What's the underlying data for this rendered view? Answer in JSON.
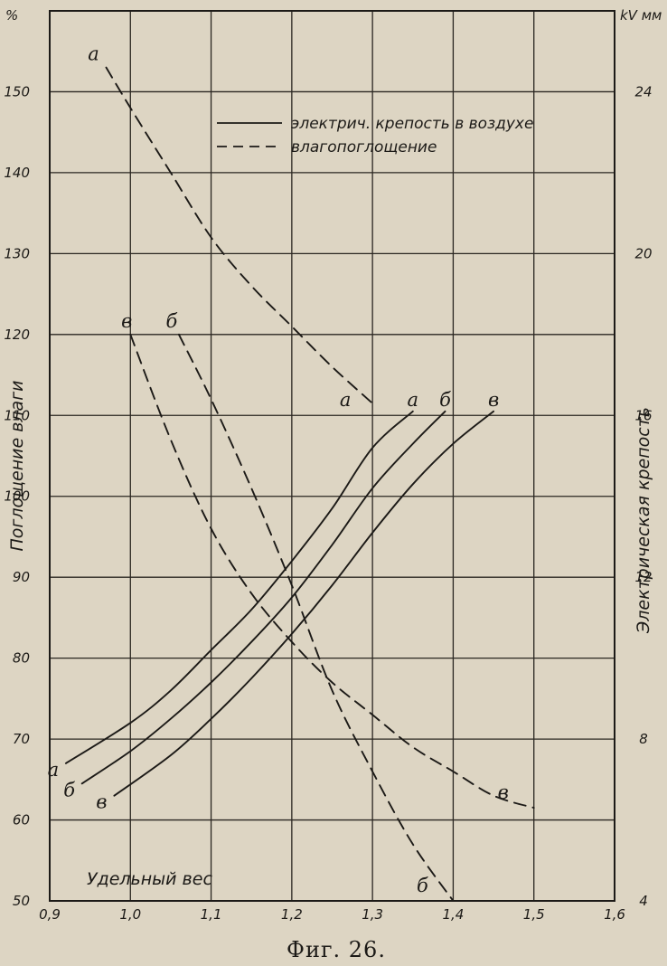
{
  "caption": "Фиг. 26.",
  "chart_data": {
    "type": "line",
    "xlabel": "Удельный вес",
    "ylabel_left": "Поглощение влаги",
    "ylabel_right": "Электрическая крепость",
    "left_unit": "%",
    "right_unit": "kV мм",
    "xlim": [
      0.9,
      1.6
    ],
    "ylim_left": [
      50,
      160
    ],
    "ylim_right": [
      4,
      26
    ],
    "x_ticks": [
      "0,9",
      "1,0",
      "1,1",
      "1,2",
      "1,3",
      "1,4",
      "1,5",
      "1,6"
    ],
    "x_tick_values": [
      0.9,
      1.0,
      1.1,
      1.2,
      1.3,
      1.4,
      1.5,
      1.6
    ],
    "y_left_ticks": [
      "50",
      "60",
      "70",
      "80",
      "90",
      "100",
      "110",
      "120",
      "130",
      "140",
      "150"
    ],
    "y_left_tick_values": [
      50,
      60,
      70,
      80,
      90,
      100,
      110,
      120,
      130,
      140,
      150
    ],
    "y_right_ticks": [
      "4",
      "8",
      "12",
      "16",
      "20",
      "24"
    ],
    "y_right_tick_values": [
      4,
      8,
      12,
      16,
      20,
      24
    ],
    "grid": true,
    "legend": {
      "placement": "top-center",
      "entries": [
        {
          "style": "solid",
          "label": "электрич. крепость в воздухе"
        },
        {
          "style": "dashed",
          "label": "влагопоглощение"
        }
      ]
    },
    "series": [
      {
        "kind": "moisture",
        "axis": "left",
        "style": "dashed",
        "label": "а",
        "points": [
          [
            0.97,
            153
          ],
          [
            1.0,
            148
          ],
          [
            1.05,
            140
          ],
          [
            1.1,
            132
          ],
          [
            1.15,
            126
          ],
          [
            1.2,
            121
          ],
          [
            1.25,
            116
          ],
          [
            1.3,
            111.5
          ]
        ]
      },
      {
        "kind": "moisture",
        "axis": "left",
        "style": "dashed",
        "label": "б",
        "points": [
          [
            1.06,
            120
          ],
          [
            1.1,
            112
          ],
          [
            1.15,
            101
          ],
          [
            1.2,
            89
          ],
          [
            1.25,
            76
          ],
          [
            1.3,
            66
          ],
          [
            1.35,
            57
          ],
          [
            1.4,
            50
          ]
        ]
      },
      {
        "kind": "moisture",
        "axis": "left",
        "style": "dashed",
        "label": "в",
        "points": [
          [
            1.0,
            120
          ],
          [
            1.05,
            107
          ],
          [
            1.1,
            96
          ],
          [
            1.15,
            88
          ],
          [
            1.2,
            82
          ],
          [
            1.25,
            77
          ],
          [
            1.3,
            73
          ],
          [
            1.35,
            69
          ],
          [
            1.4,
            66
          ],
          [
            1.45,
            63
          ],
          [
            1.5,
            61.5
          ]
        ]
      },
      {
        "kind": "strength",
        "axis": "right",
        "style": "solid",
        "label": "а",
        "points": [
          [
            0.92,
            7.4
          ],
          [
            1.0,
            8.4
          ],
          [
            1.05,
            9.2
          ],
          [
            1.1,
            10.2
          ],
          [
            1.15,
            11.2
          ],
          [
            1.2,
            12.4
          ],
          [
            1.25,
            13.7
          ],
          [
            1.3,
            15.2
          ],
          [
            1.35,
            16.1
          ]
        ]
      },
      {
        "kind": "strength",
        "axis": "right",
        "style": "solid",
        "label": "б",
        "points": [
          [
            0.94,
            6.9
          ],
          [
            1.0,
            7.7
          ],
          [
            1.05,
            8.5
          ],
          [
            1.1,
            9.4
          ],
          [
            1.15,
            10.4
          ],
          [
            1.2,
            11.5
          ],
          [
            1.25,
            12.8
          ],
          [
            1.3,
            14.2
          ],
          [
            1.35,
            15.3
          ],
          [
            1.39,
            16.1
          ]
        ]
      },
      {
        "kind": "strength",
        "axis": "right",
        "style": "solid",
        "label": "в",
        "points": [
          [
            0.98,
            6.6
          ],
          [
            1.05,
            7.6
          ],
          [
            1.1,
            8.5
          ],
          [
            1.15,
            9.5
          ],
          [
            1.2,
            10.6
          ],
          [
            1.25,
            11.8
          ],
          [
            1.3,
            13.1
          ],
          [
            1.35,
            14.3
          ],
          [
            1.4,
            15.3
          ],
          [
            1.45,
            16.1
          ]
        ]
      }
    ]
  }
}
